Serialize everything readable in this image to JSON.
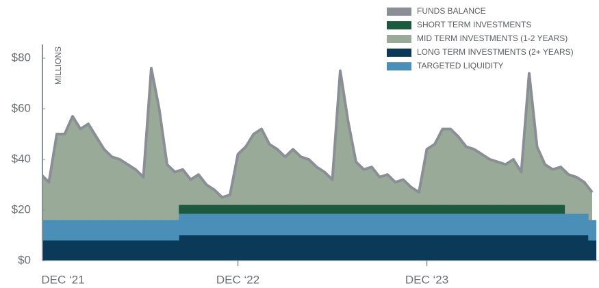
{
  "chart_data": {
    "type": "stacked-area-line",
    "y_axis_label": "MILLIONS",
    "categories": [
      null,
      "DEC ‘21",
      null,
      null,
      null,
      null,
      null,
      null,
      null,
      null,
      null,
      null,
      null,
      null,
      null,
      null,
      null,
      null,
      null,
      null,
      null,
      null,
      null,
      null,
      null,
      "DEC ‘22",
      null,
      null,
      null,
      null,
      null,
      null,
      null,
      null,
      null,
      null,
      null,
      null,
      null,
      null,
      null,
      null,
      null,
      null,
      null,
      null,
      null,
      null,
      null,
      "DEC ‘23",
      null,
      null,
      null,
      null,
      null,
      null,
      null,
      null,
      null,
      null,
      null,
      null,
      null,
      null,
      null,
      null,
      null,
      null,
      null,
      null,
      null
    ],
    "series": [
      {
        "name": "FUNDS BALANCE",
        "color": "#8a8f95",
        "values": [
          34,
          31,
          50,
          50,
          57,
          52,
          54,
          49,
          44,
          41,
          40,
          38,
          36,
          33,
          76,
          60,
          38,
          35,
          36,
          32,
          34,
          30,
          28,
          25,
          26,
          42,
          45,
          50,
          52,
          46,
          44,
          41,
          44,
          41,
          40,
          37,
          35,
          32,
          75,
          55,
          39,
          36,
          37,
          33,
          34,
          31,
          32,
          29,
          27,
          44,
          46,
          52,
          52,
          49,
          45,
          44,
          42,
          40,
          39,
          38,
          40,
          35,
          74,
          45,
          38,
          36,
          37,
          34,
          33,
          31,
          27
        ]
      },
      {
        "name": "SHORT TERM INVESTMENTS",
        "color": "#1b5a3f",
        "values": [
          null,
          null,
          null,
          null,
          null,
          null,
          null,
          null,
          null,
          null,
          null,
          null,
          null,
          null,
          null,
          null,
          null,
          null,
          3.5,
          3.5,
          3.5,
          3.5,
          3.5,
          3.5,
          3.5,
          3.5,
          3.5,
          3.5,
          3.5,
          3.5,
          3.5,
          3.5,
          3.5,
          3.5,
          3.5,
          3.5,
          3.5,
          3.5,
          3.5,
          3.5,
          3.5,
          3.5,
          3.5,
          3.5,
          3.5,
          3.5,
          3.5,
          3.5,
          3.5,
          3.5,
          3.5,
          3.5,
          3.5,
          3.5,
          3.5,
          3.5,
          3.5,
          3.5,
          3.5,
          3.5,
          3.5,
          3.5,
          3.5,
          3.5,
          3.5,
          3.5,
          3.5,
          null,
          null,
          null,
          null
        ]
      },
      {
        "name": "MID TERM INVESTMENTS (1-2 YEARS)",
        "color": "#9aaa99"
      },
      {
        "name": "LONG TERM INVESTMENTS (2+ YEARS)",
        "color": "#0b3a59",
        "values": [
          8,
          8,
          8,
          8,
          8,
          8,
          8,
          8,
          8,
          8,
          8,
          8,
          8,
          8,
          8,
          8,
          8,
          8,
          10,
          10,
          10,
          10,
          10,
          10,
          10,
          10,
          10,
          10,
          10,
          10,
          10,
          10,
          10,
          10,
          10,
          10,
          10,
          10,
          10,
          10,
          10,
          10,
          10,
          10,
          10,
          10,
          10,
          10,
          10,
          10,
          10,
          10,
          10,
          10,
          10,
          10,
          10,
          10,
          10,
          10,
          10,
          10,
          10,
          10,
          10,
          10,
          10,
          10,
          10,
          10,
          8
        ]
      },
      {
        "name": "TARGETED LIQUIDITY",
        "color": "#4a8fb8",
        "values": [
          8,
          8,
          8,
          8,
          8,
          8,
          8,
          8,
          8,
          8,
          8,
          8,
          8,
          8,
          8,
          8,
          8,
          8,
          8.5,
          8.5,
          8.5,
          8.5,
          8.5,
          8.5,
          8.5,
          8.5,
          8.5,
          8.5,
          8.5,
          8.5,
          8.5,
          8.5,
          8.5,
          8.5,
          8.5,
          8.5,
          8.5,
          8.5,
          8.5,
          8.5,
          8.5,
          8.5,
          8.5,
          8.5,
          8.5,
          8.5,
          8.5,
          8.5,
          8.5,
          8.5,
          8.5,
          8.5,
          8.5,
          8.5,
          8.5,
          8.5,
          8.5,
          8.5,
          8.5,
          8.5,
          8.5,
          8.5,
          8.5,
          8.5,
          8.5,
          8.5,
          8.5,
          8.5,
          8.5,
          8.5,
          8
        ]
      }
    ],
    "ylim": [
      0,
      80
    ],
    "yticks": [
      {
        "value": 0,
        "label": "$0"
      },
      {
        "value": 20,
        "label": "$20"
      },
      {
        "value": 40,
        "label": "$40"
      },
      {
        "value": 60,
        "label": "$60"
      },
      {
        "value": 80,
        "label": "$80"
      }
    ]
  }
}
